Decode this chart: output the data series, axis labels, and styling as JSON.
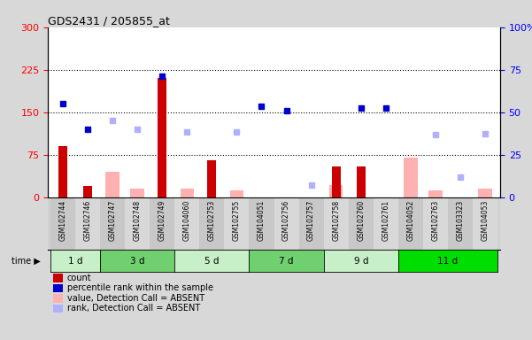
{
  "title": "GDS2431 / 205855_at",
  "samples": [
    "GSM102744",
    "GSM102746",
    "GSM102747",
    "GSM102748",
    "GSM102749",
    "GSM104060",
    "GSM102753",
    "GSM102755",
    "GSM104051",
    "GSM102756",
    "GSM102757",
    "GSM102758",
    "GSM102760",
    "GSM102761",
    "GSM104052",
    "GSM102763",
    "GSM103323",
    "GSM104053"
  ],
  "time_groups": [
    {
      "label": "1 d",
      "start": 0,
      "end": 2,
      "color": "#c8f0c8"
    },
    {
      "label": "3 d",
      "start": 2,
      "end": 5,
      "color": "#70d070"
    },
    {
      "label": "5 d",
      "start": 5,
      "end": 8,
      "color": "#c8f0c8"
    },
    {
      "label": "7 d",
      "start": 8,
      "end": 11,
      "color": "#70d070"
    },
    {
      "label": "9 d",
      "start": 11,
      "end": 14,
      "color": "#c8f0c8"
    },
    {
      "label": "11 d",
      "start": 14,
      "end": 18,
      "color": "#00dd00"
    }
  ],
  "count_values": [
    90,
    20,
    0,
    0,
    210,
    0,
    65,
    0,
    0,
    0,
    0,
    55,
    55,
    0,
    0,
    0,
    0,
    0
  ],
  "percentile_values": [
    165,
    120,
    0,
    0,
    213,
    0,
    0,
    0,
    160,
    152,
    0,
    0,
    158,
    158,
    0,
    0,
    0,
    0
  ],
  "absent_value_values": [
    0,
    0,
    45,
    15,
    0,
    15,
    0,
    12,
    0,
    0,
    0,
    22,
    0,
    0,
    70,
    12,
    0,
    15
  ],
  "absent_rank_values": [
    0,
    0,
    135,
    120,
    0,
    115,
    0,
    115,
    0,
    0,
    22,
    0,
    0,
    0,
    0,
    110,
    35,
    112
  ],
  "ylim_left": [
    0,
    300
  ],
  "ylim_right": [
    0,
    100
  ],
  "yticks_left": [
    0,
    75,
    150,
    225,
    300
  ],
  "yticks_right": [
    0,
    25,
    50,
    75,
    100
  ],
  "hlines": [
    75,
    150,
    225
  ],
  "count_color": "#cc0000",
  "percentile_color": "#0000cc",
  "absent_value_color": "#ffb0b0",
  "absent_rank_color": "#b0b0ff",
  "bg_color": "#d8d8d8",
  "plot_bg_color": "#ffffff",
  "xticklabels_bg": "#d0d0d0",
  "legend_items": [
    {
      "label": "count",
      "color": "#cc0000"
    },
    {
      "label": "percentile rank within the sample",
      "color": "#0000cc"
    },
    {
      "label": "value, Detection Call = ABSENT",
      "color": "#ffb0b0"
    },
    {
      "label": "rank, Detection Call = ABSENT",
      "color": "#b0b0ff"
    }
  ]
}
